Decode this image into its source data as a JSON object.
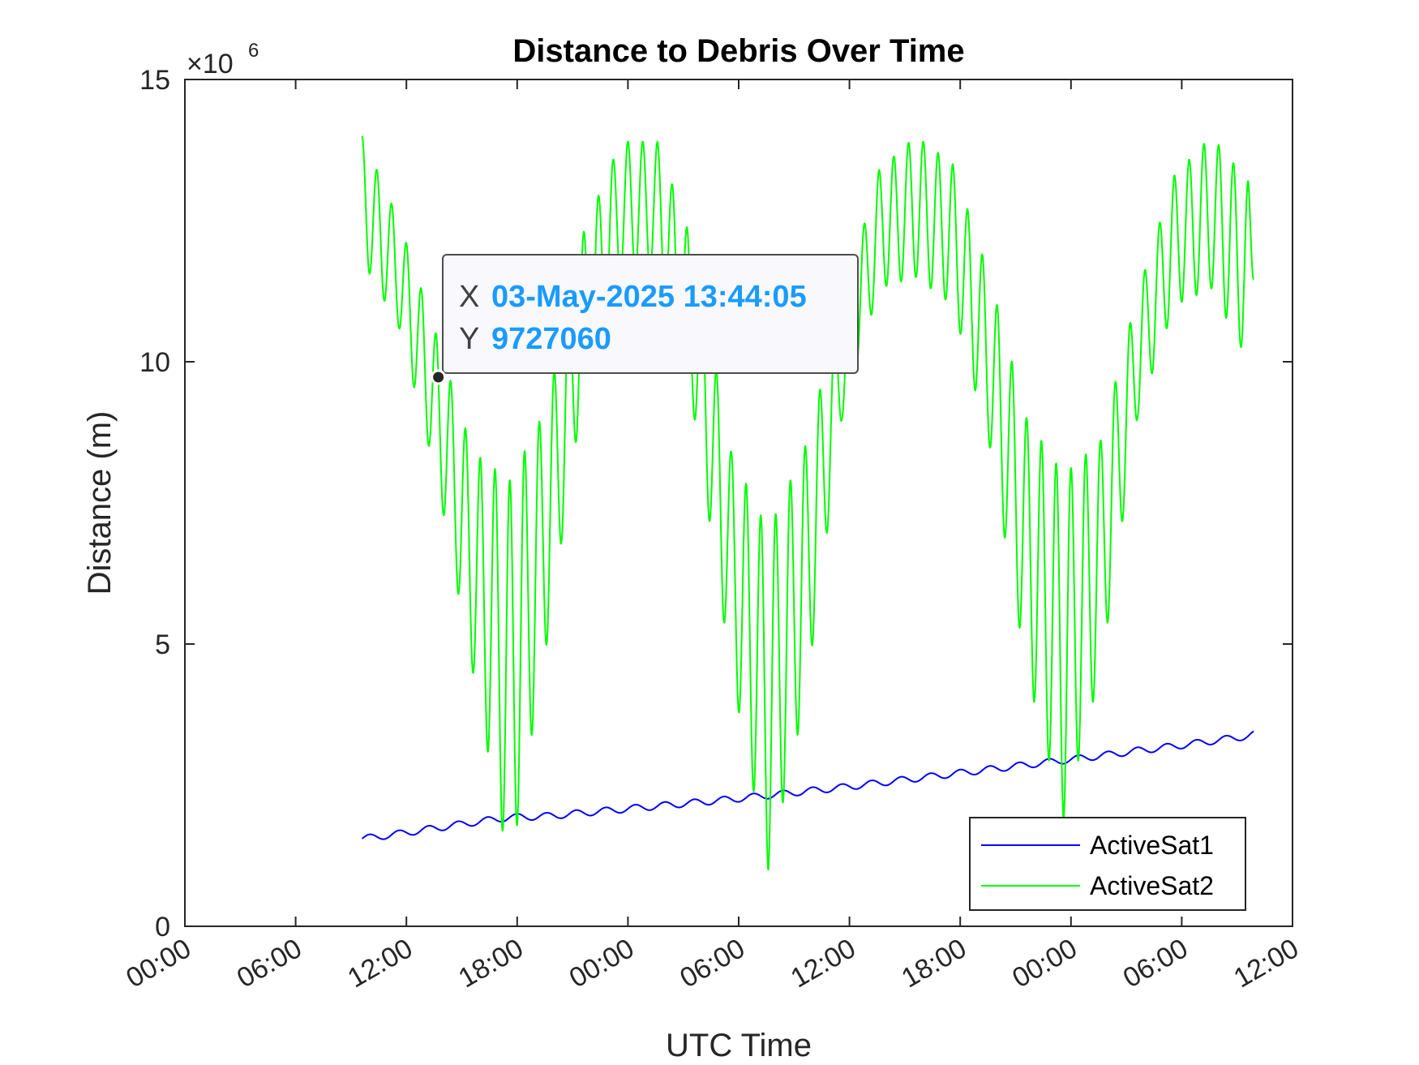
{
  "chart_data": {
    "type": "line",
    "title": "Distance to Debris Over Time",
    "xlabel": "UTC Time",
    "ylabel": "Distance (m)",
    "y_exponent_label": "×10",
    "y_exponent_power": "6",
    "ylim": [
      0,
      15000000
    ],
    "y_ticks": [
      0,
      5000000,
      10000000,
      15000000
    ],
    "y_tick_labels": [
      "0",
      "5",
      "10",
      "15"
    ],
    "xlim_hours": [
      0,
      60
    ],
    "x_tick_hours": [
      0,
      6,
      12,
      18,
      24,
      30,
      36,
      42,
      48,
      54,
      60
    ],
    "x_tick_labels": [
      "00:00",
      "06:00",
      "12:00",
      "18:00",
      "00:00",
      "06:00",
      "12:00",
      "18:00",
      "00:00",
      "06:00",
      "12:00"
    ],
    "grid": false,
    "legend_position": "bottom-right",
    "series": [
      {
        "name": "ActiveSat1",
        "color": "#0000ff",
        "x_hours": [
          9.6,
          11.6,
          13.6,
          15.6,
          17.6,
          19.6,
          21.6,
          23.6,
          25.6,
          27.6,
          29.6,
          31.6,
          33.6,
          35.6,
          37.6,
          39.6,
          41.6,
          43.6,
          45.6,
          47.6,
          49.6,
          51.6,
          53.6,
          55.6,
          57.6,
          57.9
        ],
        "y": [
          1550000,
          1640000,
          1740000,
          1840000,
          1930000,
          1950000,
          2010000,
          2070000,
          2130000,
          2190000,
          2250000,
          2320000,
          2390000,
          2460000,
          2540000,
          2620000,
          2700000,
          2780000,
          2860000,
          2940000,
          3020000,
          3110000,
          3190000,
          3280000,
          3370000,
          3400000
        ]
      },
      {
        "name": "ActiveSat2",
        "color": "#00ff00",
        "x_hours": [
          9.6,
          11.6,
          13.6,
          15.6,
          17.6,
          19.6,
          21.6,
          23.6,
          25.6,
          27.6,
          29.6,
          31.6,
          33.6,
          35.6,
          37.6,
          39.6,
          41.6,
          43.6,
          45.6,
          47.6,
          49.6,
          51.6,
          53.6,
          55.6,
          57.6,
          57.9
        ],
        "y_upper": [
          14000000,
          12500000,
          10500000,
          8400000,
          7900000,
          9200000,
          12300000,
          13900000,
          13900000,
          12000000,
          8400000,
          7000000,
          8500000,
          11000000,
          13400000,
          14000000,
          13500000,
          11500000,
          9000000,
          8000000,
          8600000,
          11200000,
          13300000,
          14000000,
          13200000,
          12400000
        ],
        "y_lower": [
          11800000,
          10600000,
          8000000,
          4500000,
          1000000,
          5000000,
          9500000,
          11500000,
          11600000,
          9000000,
          4500000,
          1000000,
          4000000,
          9000000,
          11300000,
          11500000,
          11000000,
          8500000,
          4500000,
          1900000,
          4500000,
          9000000,
          11000000,
          11300000,
          10000000,
          11300000
        ],
        "oscillation_period_hours": 0.8
      }
    ],
    "reference_lines": [
      {
        "y": 0,
        "color": "#ff6666",
        "style": "dashed"
      }
    ],
    "datatip": {
      "x_key": "X",
      "x_value": "03-May-2025 13:44:05",
      "y_key": "Y",
      "y_value": "9727060",
      "value_color": "#1a9bff",
      "point_hours": 13.73,
      "point_y": 9727060
    }
  }
}
